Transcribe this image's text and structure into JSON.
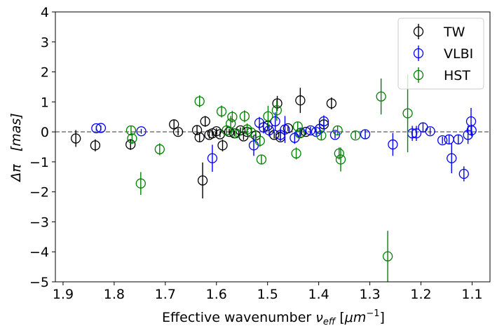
{
  "chart_data": {
    "type": "scatter",
    "title": "",
    "xlabel_main": "Effective wavenumber ",
    "xlabel_symbol": "ν",
    "xlabel_sub": "eff",
    "xlabel_unit_open": " [",
    "xlabel_unit": "μm",
    "xlabel_unit_sup": "−1",
    "xlabel_unit_close": "]",
    "ylabel_symbol": "Δπ",
    "ylabel_unit": "[mas]",
    "xlim": [
      1.915,
      1.065
    ],
    "ylim": [
      -5,
      4
    ],
    "x_ticks": [
      1.9,
      1.8,
      1.7,
      1.6,
      1.5,
      1.4,
      1.3,
      1.2,
      1.1
    ],
    "x_tick_labels": [
      "1.9",
      "1.8",
      "1.7",
      "1.6",
      "1.5",
      "1.4",
      "1.3",
      "1.2",
      "1.1"
    ],
    "y_ticks": [
      -5,
      -4,
      -3,
      -2,
      -1,
      0,
      1,
      2,
      3,
      4
    ],
    "y_tick_labels": [
      "−5",
      "−4",
      "−3",
      "−2",
      "−1",
      "0",
      "1",
      "2",
      "3",
      "4"
    ],
    "reference_line": {
      "y": 0,
      "style": "dashed",
      "color": "#808080"
    },
    "legend_position": "top-right",
    "series": [
      {
        "name": "TW",
        "color": "#000000",
        "points": [
          {
            "x": 1.875,
            "y": -0.22,
            "err": 0.28
          },
          {
            "x": 1.837,
            "y": -0.45,
            "err": 0.2
          },
          {
            "x": 1.768,
            "y": -0.42,
            "err": 0.18
          },
          {
            "x": 1.683,
            "y": 0.25,
            "err": 0.15
          },
          {
            "x": 1.675,
            "y": 0.0,
            "err": 0.12
          },
          {
            "x": 1.638,
            "y": 0.06,
            "err": 0.15
          },
          {
            "x": 1.633,
            "y": -0.18,
            "err": 0.15
          },
          {
            "x": 1.627,
            "y": -1.62,
            "err": 0.6
          },
          {
            "x": 1.622,
            "y": 0.35,
            "err": 0.18
          },
          {
            "x": 1.614,
            "y": -0.1,
            "err": 0.12
          },
          {
            "x": 1.608,
            "y": -0.05,
            "err": 0.1
          },
          {
            "x": 1.6,
            "y": 0.02,
            "err": 0.1
          },
          {
            "x": 1.593,
            "y": -0.08,
            "err": 0.1
          },
          {
            "x": 1.588,
            "y": -0.45,
            "err": 0.2
          },
          {
            "x": 1.575,
            "y": 0.0,
            "err": 0.1
          },
          {
            "x": 1.565,
            "y": -0.05,
            "err": 0.1
          },
          {
            "x": 1.553,
            "y": 0.05,
            "err": 0.1
          },
          {
            "x": 1.547,
            "y": -0.15,
            "err": 0.12
          },
          {
            "x": 1.54,
            "y": 0.0,
            "err": 0.1
          },
          {
            "x": 1.523,
            "y": -0.12,
            "err": 0.12
          },
          {
            "x": 1.5,
            "y": 0.2,
            "err": 0.1
          },
          {
            "x": 1.487,
            "y": -0.1,
            "err": 0.12
          },
          {
            "x": 1.481,
            "y": 0.95,
            "err": 0.25
          },
          {
            "x": 1.475,
            "y": -0.18,
            "err": 0.12
          },
          {
            "x": 1.46,
            "y": 0.12,
            "err": 0.1
          },
          {
            "x": 1.436,
            "y": 1.05,
            "err": 0.42
          },
          {
            "x": 1.425,
            "y": 0.0,
            "err": 0.1
          },
          {
            "x": 1.39,
            "y": 0.25,
            "err": 0.15
          },
          {
            "x": 1.375,
            "y": 0.95,
            "err": 0.2
          }
        ]
      },
      {
        "name": "VLBI",
        "color": "#0000ff",
        "points": [
          {
            "x": 1.835,
            "y": 0.12,
            "err": 0.08
          },
          {
            "x": 1.826,
            "y": 0.13,
            "err": 0.08
          },
          {
            "x": 1.747,
            "y": 0.02,
            "err": 0.08
          },
          {
            "x": 1.608,
            "y": -0.88,
            "err": 0.45
          },
          {
            "x": 1.527,
            "y": -0.45,
            "err": 0.35
          },
          {
            "x": 1.516,
            "y": 0.3,
            "err": 0.2
          },
          {
            "x": 1.508,
            "y": 0.15,
            "err": 0.2
          },
          {
            "x": 1.497,
            "y": 0.05,
            "err": 0.2
          },
          {
            "x": 1.485,
            "y": 0.35,
            "err": 0.3
          },
          {
            "x": 1.475,
            "y": -0.1,
            "err": 0.2
          },
          {
            "x": 1.466,
            "y": 0.08,
            "err": 0.45
          },
          {
            "x": 1.447,
            "y": -0.2,
            "err": 0.2
          },
          {
            "x": 1.435,
            "y": -0.03,
            "err": 0.12
          },
          {
            "x": 1.416,
            "y": 0.05,
            "err": 0.12
          },
          {
            "x": 1.405,
            "y": 0.0,
            "err": 0.12
          },
          {
            "x": 1.398,
            "y": 0.1,
            "err": 0.12
          },
          {
            "x": 1.39,
            "y": 0.35,
            "err": 0.2
          },
          {
            "x": 1.368,
            "y": -0.1,
            "err": 0.12
          },
          {
            "x": 1.309,
            "y": -0.08,
            "err": 0.15
          },
          {
            "x": 1.255,
            "y": -0.42,
            "err": 0.38
          },
          {
            "x": 1.217,
            "y": -0.05,
            "err": 0.25
          },
          {
            "x": 1.209,
            "y": -0.05,
            "err": 0.25
          },
          {
            "x": 1.196,
            "y": 0.15,
            "err": 0.15
          },
          {
            "x": 1.182,
            "y": 0.02,
            "err": 0.12
          },
          {
            "x": 1.158,
            "y": -0.28,
            "err": 0.12
          },
          {
            "x": 1.145,
            "y": -0.25,
            "err": 0.15
          },
          {
            "x": 1.14,
            "y": -0.88,
            "err": 0.5
          },
          {
            "x": 1.127,
            "y": -0.25,
            "err": 0.15
          },
          {
            "x": 1.116,
            "y": -1.4,
            "err": 0.25
          },
          {
            "x": 1.108,
            "y": -0.1,
            "err": 0.3
          },
          {
            "x": 1.102,
            "y": 0.35,
            "err": 0.45
          },
          {
            "x": 1.101,
            "y": 0.05,
            "err": 0.2
          }
        ]
      },
      {
        "name": "HST",
        "color": "#008000",
        "points": [
          {
            "x": 1.767,
            "y": 0.05,
            "err": 0.15
          },
          {
            "x": 1.765,
            "y": -0.22,
            "err": 0.18
          },
          {
            "x": 1.748,
            "y": -1.72,
            "err": 0.38
          },
          {
            "x": 1.711,
            "y": -0.58,
            "err": 0.2
          },
          {
            "x": 1.633,
            "y": 1.02,
            "err": 0.2
          },
          {
            "x": 1.59,
            "y": 0.68,
            "err": 0.2
          },
          {
            "x": 1.58,
            "y": 0.05,
            "err": 0.15
          },
          {
            "x": 1.572,
            "y": 0.28,
            "err": 0.25
          },
          {
            "x": 1.569,
            "y": 0.5,
            "err": 0.2
          },
          {
            "x": 1.562,
            "y": -0.05,
            "err": 0.12
          },
          {
            "x": 1.545,
            "y": 0.52,
            "err": 0.2
          },
          {
            "x": 1.54,
            "y": 0.08,
            "err": 0.2
          },
          {
            "x": 1.532,
            "y": -0.02,
            "err": 0.15
          },
          {
            "x": 1.515,
            "y": -0.3,
            "err": 0.2
          },
          {
            "x": 1.512,
            "y": -0.92,
            "err": 0.15
          },
          {
            "x": 1.499,
            "y": 0.52,
            "err": 0.35
          },
          {
            "x": 1.482,
            "y": 0.72,
            "err": 0.35
          },
          {
            "x": 1.444,
            "y": -0.72,
            "err": 0.2
          },
          {
            "x": 1.441,
            "y": 0.18,
            "err": 0.15
          },
          {
            "x": 1.437,
            "y": -0.05,
            "err": 0.15
          },
          {
            "x": 1.395,
            "y": -0.12,
            "err": 0.15
          },
          {
            "x": 1.363,
            "y": 0.05,
            "err": 0.15
          },
          {
            "x": 1.36,
            "y": -0.72,
            "err": 0.2
          },
          {
            "x": 1.357,
            "y": -0.92,
            "err": 0.4
          },
          {
            "x": 1.328,
            "y": -0.12,
            "err": 0.12
          },
          {
            "x": 1.278,
            "y": 1.18,
            "err": 0.6
          },
          {
            "x": 1.265,
            "y": -4.15,
            "err": 0.85
          },
          {
            "x": 1.226,
            "y": 0.62,
            "err": 1.3
          }
        ]
      }
    ]
  }
}
